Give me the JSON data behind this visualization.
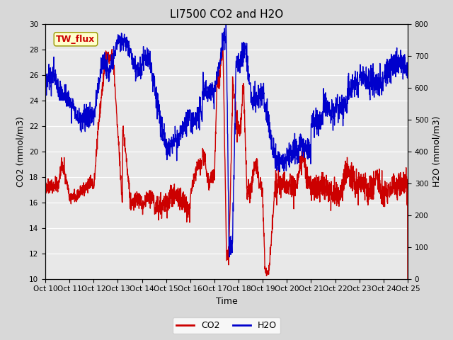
{
  "title": "LI7500 CO2 and H2O",
  "xlabel": "Time",
  "ylabel_left": "CO2 (mmol/m3)",
  "ylabel_right": "H2O (mmol/m3)",
  "annotation_text": "TW_flux",
  "annotation_color": "#cc0000",
  "annotation_bg": "#ffffcc",
  "annotation_border": "#999900",
  "xlim": [
    0,
    15
  ],
  "ylim_left": [
    10,
    30
  ],
  "ylim_right": [
    0,
    800
  ],
  "xtick_positions": [
    0,
    1,
    2,
    3,
    4,
    5,
    6,
    7,
    8,
    9,
    10,
    11,
    12,
    13,
    14,
    15
  ],
  "xtick_labels": [
    "Oct 10",
    "Oct 11",
    "Oct 12",
    "Oct 13",
    "Oct 14",
    "Oct 15",
    "Oct 16",
    "Oct 17",
    "Oct 18",
    "Oct 19",
    "Oct 20",
    "Oct 21",
    "Oct 22",
    "Oct 23",
    "Oct 24",
    "Oct 25"
  ],
  "yticks_left": [
    10,
    12,
    14,
    16,
    18,
    20,
    22,
    24,
    26,
    28,
    30
  ],
  "yticks_right": [
    0,
    100,
    200,
    300,
    400,
    500,
    600,
    700,
    800
  ],
  "fig_bg_color": "#d8d8d8",
  "plot_bg_color": "#e8e8e8",
  "line_color_co2": "#cc0000",
  "line_color_h2o": "#0000cc",
  "line_width": 1.0,
  "title_fontsize": 11,
  "label_fontsize": 9,
  "tick_fontsize": 7.5,
  "legend_fontsize": 9
}
